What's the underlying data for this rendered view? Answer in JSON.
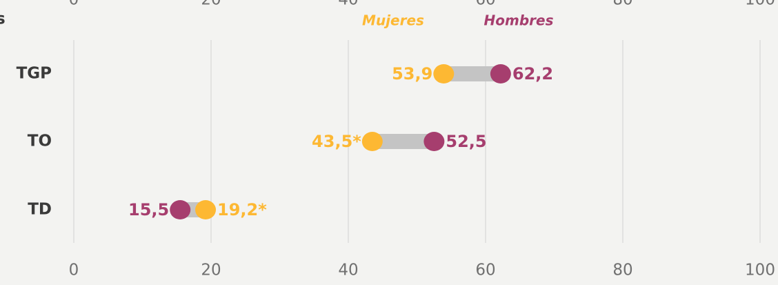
{
  "chart_data": {
    "type": "dumbbell",
    "ylabel": "s",
    "categories": [
      "TGP",
      "TO",
      "TD"
    ],
    "series": [
      {
        "name": "Mujeres",
        "color": "#fdb833",
        "values": [
          53.9,
          43.5,
          19.2
        ],
        "value_labels": [
          "53,9",
          "43,5*",
          "19,2*"
        ]
      },
      {
        "name": "Hombres",
        "color": "#a63e6e",
        "values": [
          62.2,
          52.5,
          15.5
        ],
        "value_labels": [
          "62,2",
          "52,5",
          "15,5"
        ]
      }
    ],
    "connector_color": "#c4c4c4",
    "xlim": [
      0,
      100
    ],
    "xticks": [
      0,
      20,
      40,
      60,
      80,
      100
    ],
    "grid": true
  }
}
